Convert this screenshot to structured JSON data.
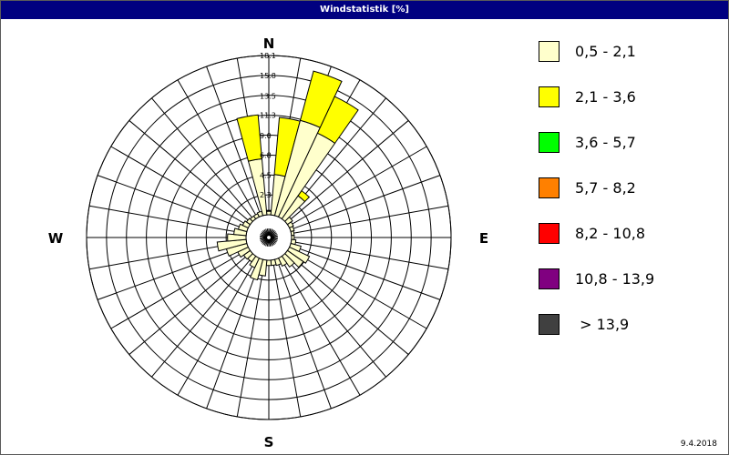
{
  "window": {
    "title": "Windstatistik [%]"
  },
  "footer": {
    "date": "9.4.2018"
  },
  "chart_data": {
    "type": "windrose",
    "title": "Windstatistik [%]",
    "unit": "%",
    "directions": [
      "N",
      "E",
      "S",
      "W"
    ],
    "sectors": 36,
    "sector_width_deg": 10,
    "r_ticks": [
      2.3,
      4.5,
      6.8,
      9.0,
      11.3,
      13.5,
      15.8,
      18.1
    ],
    "r_max": 18.1,
    "grid": true,
    "legend_position": "right",
    "speed_classes": [
      {
        "label": "0,5 - 2,1",
        "color": "#ffffcc"
      },
      {
        "label": "2,1 - 3,6",
        "color": "#ffff00"
      },
      {
        "label": "3,6 - 5,7",
        "color": "#00ff00"
      },
      {
        "label": "5,7 - 8,2",
        "color": "#ff8000"
      },
      {
        "label": "8,2 - 10,8",
        "color": "#ff0000"
      },
      {
        "label": "10,8 - 13,9",
        "color": "#800080"
      },
      {
        "label": " > 13,9",
        "color": "#404040"
      }
    ],
    "stacks": [
      {
        "dir_deg": 0,
        "values": [
          0.4,
          0.1,
          0,
          0,
          0,
          0,
          0
        ]
      },
      {
        "dir_deg": 10,
        "values": [
          4.6,
          6.5,
          0,
          0,
          0,
          0,
          0
        ]
      },
      {
        "dir_deg": 20,
        "values": [
          11.2,
          5.8,
          0,
          0,
          0,
          0,
          0
        ]
      },
      {
        "dir_deg": 30,
        "values": [
          10.5,
          4.6,
          0,
          0,
          0,
          0,
          0
        ]
      },
      {
        "dir_deg": 40,
        "values": [
          3.2,
          0.7,
          0,
          0,
          0,
          0,
          0
        ]
      },
      {
        "dir_deg": 50,
        "values": [
          0.7,
          0,
          0,
          0,
          0,
          0,
          0
        ]
      },
      {
        "dir_deg": 60,
        "values": [
          0.5,
          0,
          0,
          0,
          0,
          0,
          0
        ]
      },
      {
        "dir_deg": 70,
        "values": [
          0.4,
          0,
          0,
          0,
          0,
          0,
          0
        ]
      },
      {
        "dir_deg": 80,
        "values": [
          0.3,
          0,
          0,
          0,
          0,
          0,
          0
        ]
      },
      {
        "dir_deg": 90,
        "values": [
          0.3,
          0,
          0,
          0,
          0,
          0,
          0
        ]
      },
      {
        "dir_deg": 100,
        "values": [
          0.5,
          0,
          0,
          0,
          0,
          0,
          0
        ]
      },
      {
        "dir_deg": 110,
        "values": [
          1.2,
          0,
          0,
          0,
          0,
          0,
          0
        ]
      },
      {
        "dir_deg": 120,
        "values": [
          2.5,
          0,
          0,
          0,
          0,
          0,
          0
        ]
      },
      {
        "dir_deg": 130,
        "values": [
          2.2,
          0,
          0,
          0,
          0,
          0,
          0
        ]
      },
      {
        "dir_deg": 140,
        "values": [
          1.5,
          0,
          0,
          0,
          0,
          0,
          0
        ]
      },
      {
        "dir_deg": 150,
        "values": [
          1.0,
          0,
          0,
          0,
          0,
          0,
          0
        ]
      },
      {
        "dir_deg": 160,
        "values": [
          0.7,
          0,
          0,
          0,
          0,
          0,
          0
        ]
      },
      {
        "dir_deg": 170,
        "values": [
          0.6,
          0,
          0,
          0,
          0,
          0,
          0
        ]
      },
      {
        "dir_deg": 180,
        "values": [
          0.6,
          0,
          0,
          0,
          0,
          0,
          0
        ]
      },
      {
        "dir_deg": 190,
        "values": [
          1.8,
          0,
          0,
          0,
          0,
          0,
          0
        ]
      },
      {
        "dir_deg": 200,
        "values": [
          2.4,
          0,
          0,
          0,
          0,
          0,
          0
        ]
      },
      {
        "dir_deg": 210,
        "values": [
          1.2,
          0,
          0,
          0,
          0,
          0,
          0
        ]
      },
      {
        "dir_deg": 220,
        "values": [
          0.8,
          0,
          0,
          0,
          0,
          0,
          0
        ]
      },
      {
        "dir_deg": 230,
        "values": [
          0.9,
          0,
          0,
          0,
          0,
          0,
          0
        ]
      },
      {
        "dir_deg": 240,
        "values": [
          1.3,
          0,
          0,
          0,
          0,
          0,
          0
        ]
      },
      {
        "dir_deg": 250,
        "values": [
          2.4,
          0,
          0,
          0,
          0,
          0,
          0
        ]
      },
      {
        "dir_deg": 260,
        "values": [
          3.3,
          0,
          0,
          0,
          0,
          0,
          0
        ]
      },
      {
        "dir_deg": 270,
        "values": [
          2.1,
          0,
          0,
          0,
          0,
          0,
          0
        ]
      },
      {
        "dir_deg": 280,
        "values": [
          1.4,
          0,
          0,
          0,
          0,
          0,
          0
        ]
      },
      {
        "dir_deg": 290,
        "values": [
          1.0,
          0,
          0,
          0,
          0,
          0,
          0
        ]
      },
      {
        "dir_deg": 300,
        "values": [
          0.7,
          0,
          0,
          0,
          0,
          0,
          0
        ]
      },
      {
        "dir_deg": 310,
        "values": [
          0.5,
          0,
          0,
          0,
          0,
          0,
          0
        ]
      },
      {
        "dir_deg": 320,
        "values": [
          0.4,
          0,
          0,
          0,
          0,
          0,
          0
        ]
      },
      {
        "dir_deg": 330,
        "values": [
          0.4,
          0,
          0,
          0,
          0,
          0,
          0
        ]
      },
      {
        "dir_deg": 340,
        "values": [
          0.5,
          0,
          0,
          0,
          0,
          0,
          0
        ]
      },
      {
        "dir_deg": 350,
        "values": [
          6.4,
          5.0,
          0,
          0,
          0,
          0,
          0
        ]
      }
    ]
  }
}
